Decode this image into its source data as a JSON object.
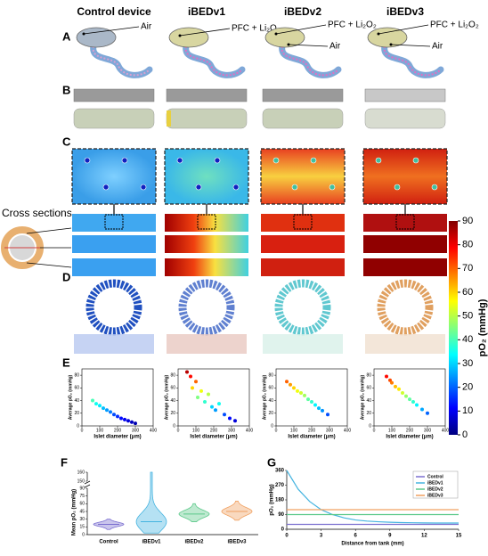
{
  "columns": [
    "Control device",
    "iBEDv1",
    "iBEDv2",
    "iBEDv3"
  ],
  "panel_labels": [
    "A",
    "B",
    "C",
    "D",
    "E",
    "F",
    "G"
  ],
  "panel_a_labels": [
    [
      "Air"
    ],
    [
      "PFC + Li₂O₂"
    ],
    [
      "PFC + Li₂O₂",
      "Air"
    ],
    [
      "PFC + Li₂O₂",
      "Air"
    ]
  ],
  "cross_sections_label": "Cross sections",
  "colorbar": {
    "label": "pO₂ (mmHg)",
    "colormap": "jet",
    "lim": [
      0,
      90
    ],
    "ticks": [
      0,
      10,
      20,
      30,
      40,
      50,
      60,
      70,
      80,
      90
    ]
  },
  "chart_data": [
    {
      "type": "scatter",
      "colormap": "jet",
      "xlabel": "Islet diameter (μm)",
      "ylabel": "Average pO₂ (mmHg)",
      "xlim": [
        0,
        400
      ],
      "ylim": [
        0,
        90
      ],
      "xticks": [
        0,
        100,
        200,
        300,
        400
      ],
      "yticks": [
        0,
        20,
        40,
        60,
        80
      ],
      "x": [
        60,
        80,
        100,
        120,
        140,
        160,
        180,
        200,
        220,
        240,
        260,
        280,
        300
      ],
      "y": [
        40,
        35,
        32,
        28,
        25,
        22,
        18,
        15,
        12,
        10,
        8,
        6,
        4
      ]
    },
    {
      "type": "scatter",
      "colormap": "jet",
      "xlabel": "Islet diameter (μm)",
      "ylabel": "Average pO₂ (mmHg)",
      "xlim": [
        0,
        400
      ],
      "ylim": [
        0,
        90
      ],
      "xticks": [
        0,
        100,
        200,
        300,
        400
      ],
      "yticks": [
        0,
        20,
        40,
        60,
        80
      ],
      "x": [
        50,
        70,
        80,
        100,
        110,
        130,
        150,
        170,
        190,
        210,
        230,
        260,
        290,
        320
      ],
      "y": [
        85,
        78,
        60,
        70,
        45,
        55,
        38,
        50,
        30,
        25,
        35,
        18,
        12,
        8
      ]
    },
    {
      "type": "scatter",
      "colormap": "jet",
      "xlabel": "Islet diameter (μm)",
      "ylabel": "Average pO₂ (mmHg)",
      "xlim": [
        0,
        400
      ],
      "ylim": [
        0,
        90
      ],
      "xticks": [
        0,
        100,
        200,
        300,
        400
      ],
      "yticks": [
        0,
        20,
        40,
        60,
        80
      ],
      "x": [
        60,
        80,
        100,
        120,
        140,
        160,
        180,
        200,
        220,
        240,
        260,
        290
      ],
      "y": [
        70,
        65,
        60,
        55,
        52,
        48,
        42,
        38,
        33,
        28,
        24,
        18
      ]
    },
    {
      "type": "scatter",
      "colormap": "jet",
      "xlabel": "Islet diameter (μm)",
      "ylabel": "Average pO₂ (mmHg)",
      "xlim": [
        0,
        400
      ],
      "ylim": [
        0,
        90
      ],
      "xticks": [
        0,
        100,
        200,
        300,
        400
      ],
      "yticks": [
        0,
        20,
        40,
        60,
        80
      ],
      "x": [
        70,
        90,
        100,
        120,
        140,
        160,
        180,
        200,
        220,
        240,
        270,
        300
      ],
      "y": [
        78,
        72,
        68,
        62,
        58,
        52,
        47,
        42,
        38,
        33,
        26,
        20
      ]
    },
    {
      "type": "violin",
      "ylabel": "Mean pO₂ (mmHg)",
      "categories": [
        "Control",
        "iBEDv1",
        "iBEDv2",
        "iBEDv3"
      ],
      "colors": [
        "#7b6fd0",
        "#45b4e0",
        "#5cc98a",
        "#f0a060"
      ],
      "values": [
        20,
        25,
        40,
        45
      ],
      "min": [
        10,
        3,
        25,
        28
      ],
      "max": [
        30,
        160,
        60,
        65
      ],
      "ylim": [
        0,
        90
      ],
      "yticks": [
        0,
        15,
        30,
        45,
        60,
        75,
        90
      ],
      "ylim_upper": [
        150,
        160
      ],
      "yticks_upper": [
        150,
        160
      ]
    },
    {
      "type": "line",
      "xlabel": "Distance from tank (mm)",
      "ylabel": "pO₂ (mmHg)",
      "xlim": [
        0,
        15
      ],
      "ylim": [
        0,
        360
      ],
      "xticks": [
        0,
        3,
        6,
        9,
        12,
        15
      ],
      "yticks": [
        0,
        90,
        180,
        270,
        360
      ],
      "legend": "top-right",
      "x": [
        0,
        1,
        2,
        3,
        4,
        5,
        6,
        7,
        8,
        9,
        10,
        11,
        12,
        13,
        14,
        15
      ],
      "series": [
        {
          "name": "Control",
          "color": "#7b6fd0",
          "values": [
            30,
            30,
            30,
            30,
            30,
            30,
            30,
            30,
            30,
            30,
            30,
            30,
            30,
            30,
            30,
            30
          ]
        },
        {
          "name": "iBEDv1",
          "color": "#45b4e0",
          "values": [
            360,
            245,
            170,
            120,
            90,
            70,
            57,
            50,
            46,
            43,
            41,
            40,
            39,
            38,
            38,
            38
          ]
        },
        {
          "name": "iBEDv2",
          "color": "#5cc98a",
          "values": [
            90,
            90,
            90,
            90,
            90,
            90,
            90,
            90,
            90,
            90,
            90,
            90,
            90,
            90,
            90,
            90
          ]
        },
        {
          "name": "iBEDv3",
          "color": "#f0a060",
          "values": [
            120,
            120,
            120,
            120,
            120,
            120,
            120,
            120,
            120,
            120,
            120,
            120,
            120,
            120,
            120,
            120
          ]
        }
      ]
    }
  ]
}
